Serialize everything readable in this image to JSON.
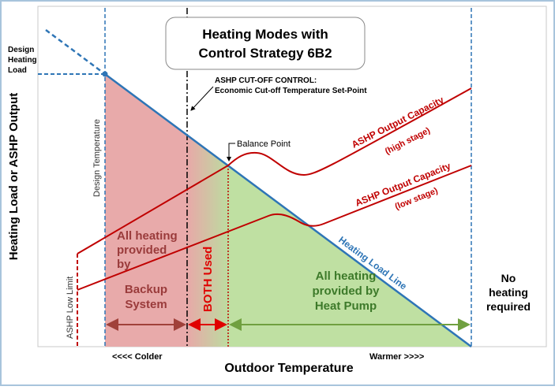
{
  "title": [
    "Heating Modes with",
    "Control Strategy 6B2"
  ],
  "y_axis_label": "Heating Load or ASHP Output",
  "x_axis_label": "Outdoor Temperature",
  "x_axis_left": "<<<< Colder",
  "x_axis_right": "Warmer >>>>",
  "design_heating_load": [
    "Design",
    "Heating",
    "Load"
  ],
  "design_temperature": "Design Temperature",
  "ashp_low_limit": "ASHP Low Limit",
  "cutoff_control": [
    "ASHP CUT-OFF CONTROL:",
    "Economic Cut-off Temperature Set-Point"
  ],
  "balance_point": "Balance Point",
  "high_stage": [
    "ASHP Output Capacity",
    "(high stage)"
  ],
  "low_stage": [
    "ASHP Output Capacity",
    "(low stage)"
  ],
  "heating_load_line": "Heating Load Line",
  "backup_region": [
    "All heating",
    "provided",
    "by",
    "Backup",
    "System"
  ],
  "both_used": "BOTH Used",
  "heat_pump_region": [
    "All heating",
    "provided by",
    "Heat Pump"
  ],
  "no_heating": [
    "No",
    "heating",
    "required"
  ]
}
